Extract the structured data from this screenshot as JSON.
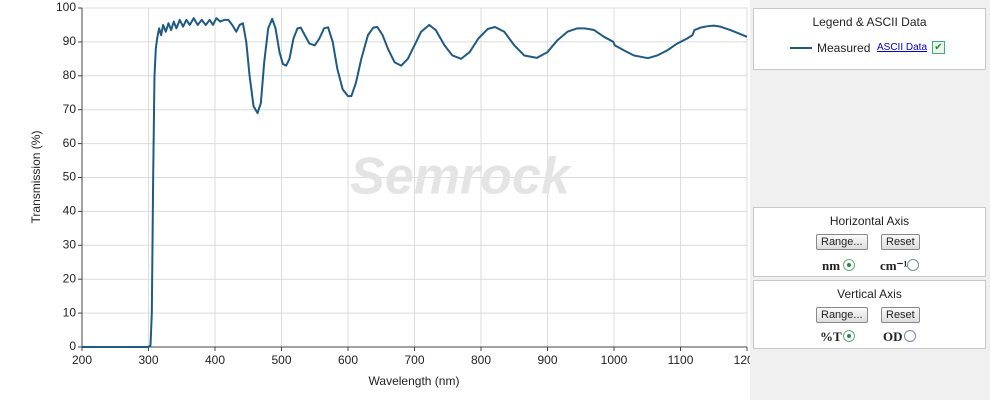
{
  "chart_data": {
    "type": "line",
    "watermark": "Semrock",
    "xlabel": "Wavelength (nm)",
    "ylabel": "Transmission (%)",
    "xlim": [
      200,
      1200
    ],
    "xticks": [
      200,
      300,
      400,
      500,
      600,
      700,
      800,
      900,
      1000,
      1100,
      1200
    ],
    "ylim": [
      0,
      100
    ],
    "yticks": [
      0,
      10,
      20,
      30,
      40,
      50,
      60,
      70,
      80,
      90,
      100
    ],
    "grid": true,
    "x": [
      200,
      300,
      303,
      305,
      307,
      309,
      311,
      313,
      316,
      319,
      322,
      326,
      330,
      334,
      338,
      342,
      347,
      352,
      357,
      362,
      368,
      374,
      380,
      386,
      392,
      397,
      402,
      408,
      414,
      420,
      426,
      432,
      437,
      442,
      447,
      452,
      458,
      464,
      469,
      474,
      480,
      486,
      491,
      497,
      502,
      507,
      512,
      518,
      524,
      529,
      535,
      542,
      550,
      557,
      564,
      570,
      577,
      584,
      592,
      600,
      605,
      612,
      620,
      630,
      638,
      644,
      652,
      660,
      670,
      680,
      690,
      700,
      710,
      722,
      732,
      745,
      757,
      770,
      783,
      796,
      810,
      821,
      835,
      850,
      865,
      884,
      900,
      915,
      930,
      945,
      956,
      970,
      985,
      999,
      1001,
      1015,
      1030,
      1051,
      1065,
      1080,
      1095,
      1110,
      1118,
      1121,
      1130,
      1140,
      1150,
      1160,
      1175,
      1190,
      1200
    ],
    "series": [
      {
        "name": "Measured",
        "color": "#1f5a85",
        "values": [
          0,
          0,
          0.5,
          10,
          50,
          80,
          88,
          91,
          94,
          92,
          95,
          93,
          95.5,
          93.5,
          96,
          94,
          96.5,
          94.5,
          96.5,
          95,
          97,
          95,
          96.5,
          95,
          96.5,
          95,
          97,
          96,
          96.5,
          96.5,
          95,
          93,
          95,
          95.5,
          90,
          80,
          71,
          69,
          72,
          84,
          94,
          96.8,
          94,
          87,
          83.5,
          83,
          85,
          91,
          94,
          94.2,
          92,
          89.5,
          89,
          91,
          94,
          94.3,
          90,
          82,
          76,
          74,
          74,
          78,
          85,
          92,
          94.2,
          94.4,
          92,
          88,
          84,
          83,
          85,
          89,
          93,
          95,
          93.5,
          89,
          86,
          85,
          87,
          91,
          93.8,
          94.4,
          93,
          89,
          86,
          85.3,
          87,
          90.5,
          93,
          94,
          94,
          93.5,
          91.5,
          90,
          89,
          87.5,
          86,
          85.2,
          86,
          87.5,
          89.5,
          91,
          92,
          93.5,
          94.2,
          94.6,
          94.8,
          94.5,
          93.5,
          92.3,
          91.5
        ]
      }
    ]
  },
  "panels": {
    "legend": {
      "title": "Legend & ASCII Data",
      "link": "ASCII Data"
    },
    "horizontal": {
      "title": "Horizontal Axis",
      "range": "Range...",
      "reset": "Reset",
      "options": [
        "nm",
        "cm⁻¹"
      ]
    },
    "vertical": {
      "title": "Vertical  Axis",
      "range": "Range...",
      "reset": "Reset",
      "options": [
        "%T",
        "OD"
      ]
    }
  }
}
